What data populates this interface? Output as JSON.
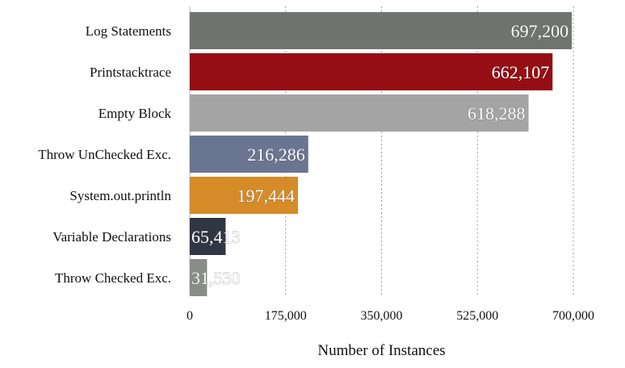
{
  "chart_data": {
    "type": "bar",
    "orientation": "horizontal",
    "categories": [
      "Log Statements",
      "Printstacktrace",
      "Empty Block",
      "Throw UnChecked Exc.",
      "System.out.println",
      "Variable Declarations",
      "Throw Checked Exc."
    ],
    "values": [
      697200,
      662107,
      618288,
      216286,
      197444,
      65413,
      31530
    ],
    "value_labels": [
      "697,200",
      "662,107",
      "618,288",
      "216,286",
      "197,444",
      "65,413",
      "31,530"
    ],
    "colors": [
      "#6f7470",
      "#950e14",
      "#a4a4a4",
      "#6a7591",
      "#d58b28",
      "#303643",
      "#898d8a"
    ],
    "xlabel": "Number of Instances",
    "xlim": [
      0,
      700000
    ],
    "xticks": [
      0,
      175000,
      350000,
      525000,
      700000
    ],
    "xtick_labels": [
      "0",
      "175,000",
      "350,000",
      "525,000",
      "700,000"
    ],
    "grid": "vertical dotted",
    "legend": "none"
  }
}
